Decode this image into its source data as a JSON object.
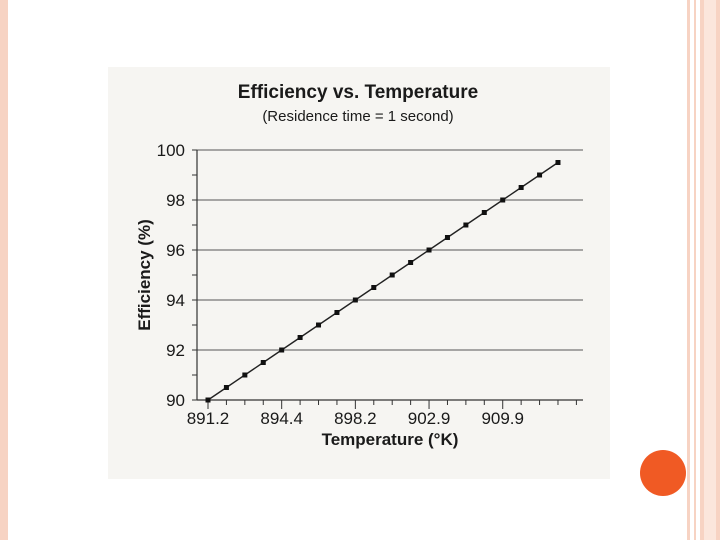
{
  "slide": {
    "accent_color": "#f05a24",
    "stripe_color": "#f7d3c3",
    "decoration": "orange-circle"
  },
  "chart_data": {
    "type": "line",
    "title": "Efficiency vs. Temperature",
    "subtitle": "(Residence time = 1 second)",
    "xlabel": "Temperature (°K)",
    "ylabel": "Efficiency (%)",
    "ylim": [
      90,
      100
    ],
    "y_ticks": [
      "90",
      "92",
      "94",
      "96",
      "98",
      "100"
    ],
    "x_tick_labels": [
      "891.2",
      "894.4",
      "898.2",
      "902.9",
      "909.9"
    ],
    "grid": "horizontal",
    "marker": "square",
    "series": [
      {
        "values": [
          90,
          90.5,
          91,
          91.5,
          92,
          92.5,
          93,
          93.5,
          94,
          94.5,
          95,
          95.5,
          96,
          96.5,
          97,
          97.5,
          98,
          98.5,
          99,
          99.5
        ]
      }
    ]
  }
}
